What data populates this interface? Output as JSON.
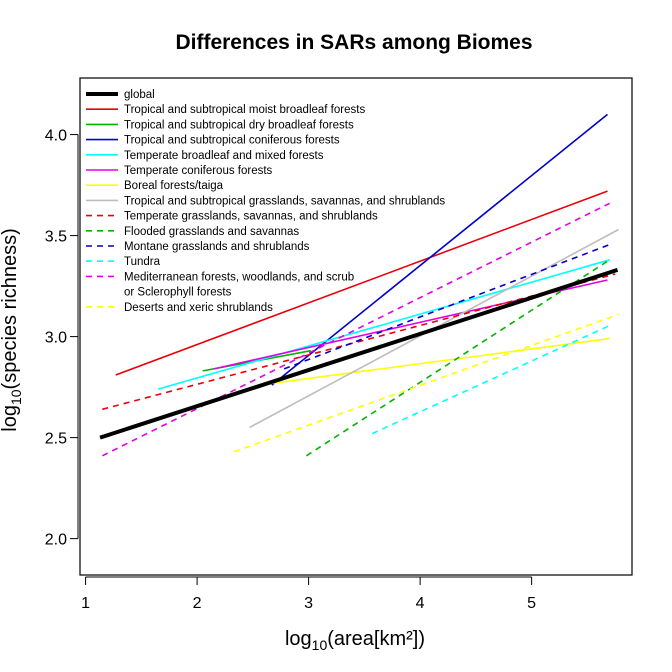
{
  "chart_data": {
    "type": "line",
    "title": "Differences in SARs among Biomes",
    "xlabel": {
      "base": "log",
      "sub": "10",
      "rest": "(area[km²])"
    },
    "ylabel": {
      "base": "log",
      "sub": "10",
      "rest": "(species richness)"
    },
    "xlim": [
      0.95,
      5.9
    ],
    "ylim": [
      1.82,
      4.28
    ],
    "xticks": [
      1,
      2,
      3,
      4,
      5
    ],
    "yticks": [
      2.0,
      2.5,
      3.0,
      3.5,
      4.0
    ],
    "xtick_labels": [
      "1",
      "2",
      "3",
      "4",
      "5"
    ],
    "ytick_labels": [
      "2.0",
      "2.5",
      "3.0",
      "3.5",
      "4.0"
    ],
    "legend_position": "top-left",
    "series": [
      {
        "name": "global",
        "color": "#000000",
        "style": "solid",
        "width": 4,
        "x": [
          1.13,
          5.77
        ],
        "y": [
          2.5,
          3.33
        ]
      },
      {
        "name": "Tropical and subtropical moist broadleaf forests",
        "color": "#e8000b",
        "style": "solid",
        "width": 1.6,
        "x": [
          1.27,
          5.68
        ],
        "y": [
          2.81,
          3.72
        ]
      },
      {
        "name": "Tropical and subtropical dry broadleaf forests",
        "color": "#00b400",
        "style": "solid",
        "width": 1.6,
        "x": [
          2.05,
          3.02
        ],
        "y": [
          2.83,
          2.93
        ]
      },
      {
        "name": "Tropical and subtropical coniferous forests",
        "color": "#0000cc",
        "style": "solid",
        "width": 1.6,
        "x": [
          2.67,
          5.68
        ],
        "y": [
          2.76,
          4.1
        ]
      },
      {
        "name": "Temperate broadleaf and mixed forests",
        "color": "#00ffff",
        "style": "solid",
        "width": 1.6,
        "x": [
          1.65,
          5.7
        ],
        "y": [
          2.74,
          3.38
        ]
      },
      {
        "name": "Temperate coniferous forests",
        "color": "#e600e6",
        "style": "solid",
        "width": 1.6,
        "x": [
          2.15,
          5.68
        ],
        "y": [
          2.84,
          3.28
        ]
      },
      {
        "name": "Boreal forests/taiga",
        "color": "#ffff00",
        "style": "solid",
        "width": 1.6,
        "x": [
          2.55,
          5.7
        ],
        "y": [
          2.76,
          2.99
        ]
      },
      {
        "name": "Tropical and subtropical grasslands, savannas, and shrublands",
        "color": "#bebebe",
        "style": "solid",
        "width": 1.6,
        "x": [
          2.47,
          5.78
        ],
        "y": [
          2.55,
          3.53
        ]
      },
      {
        "name": "Temperate grasslands, savannas, and shrublands",
        "color": "#e8000b",
        "style": "dashed",
        "width": 1.6,
        "x": [
          1.15,
          5.75
        ],
        "y": [
          2.64,
          3.31
        ]
      },
      {
        "name": "Flooded grasslands and savannas",
        "color": "#00b400",
        "style": "dashed",
        "width": 1.6,
        "x": [
          2.98,
          5.7
        ],
        "y": [
          2.41,
          3.38
        ]
      },
      {
        "name": "Montane grasslands and shrublands",
        "color": "#0000cc",
        "style": "dashed",
        "width": 1.6,
        "x": [
          2.78,
          5.72
        ],
        "y": [
          2.84,
          3.46
        ]
      },
      {
        "name": "Tundra",
        "color": "#00ffff",
        "style": "dashed",
        "width": 1.6,
        "x": [
          3.57,
          5.72
        ],
        "y": [
          2.52,
          3.06
        ]
      },
      {
        "name": "Mediterranean forests, woodlands, and scrub\nor Sclerophyll forests",
        "color": "#e600e6",
        "style": "dashed",
        "width": 1.6,
        "x": [
          1.15,
          5.7
        ],
        "y": [
          2.41,
          3.66
        ]
      },
      {
        "name": "Deserts and xeric shrublands",
        "color": "#ffff00",
        "style": "dashed",
        "width": 1.6,
        "x": [
          2.33,
          5.78
        ],
        "y": [
          2.43,
          3.11
        ]
      }
    ]
  }
}
